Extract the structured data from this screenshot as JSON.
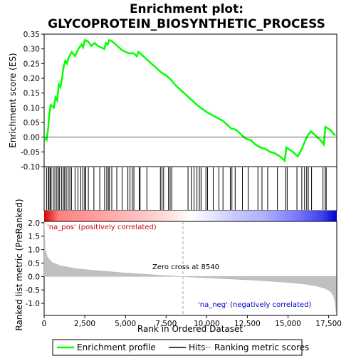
{
  "chart_data": {
    "type": "line",
    "title_line1": "Enrichment plot:",
    "title_line2": "GLYCOPROTEIN_BIOSYNTHETIC_PROCESS",
    "es_panel": {
      "ylabel": "Enrichment score (ES)",
      "ylim": [
        -0.1,
        0.35
      ],
      "yticks": [
        "-0.10",
        "-0.05",
        "0.00",
        "0.05",
        "0.10",
        "0.15",
        "0.20",
        "0.25",
        "0.30",
        "0.35"
      ],
      "line_color": "#00ff00",
      "points": [
        [
          0,
          0
        ],
        [
          150,
          -0.01
        ],
        [
          250,
          0.03
        ],
        [
          300,
          0.07
        ],
        [
          400,
          0.11
        ],
        [
          600,
          0.1
        ],
        [
          700,
          0.135
        ],
        [
          800,
          0.125
        ],
        [
          900,
          0.18
        ],
        [
          1000,
          0.17
        ],
        [
          1100,
          0.2
        ],
        [
          1200,
          0.24
        ],
        [
          1300,
          0.26
        ],
        [
          1400,
          0.25
        ],
        [
          1500,
          0.27
        ],
        [
          1700,
          0.29
        ],
        [
          1900,
          0.275
        ],
        [
          2100,
          0.3
        ],
        [
          2300,
          0.315
        ],
        [
          2400,
          0.305
        ],
        [
          2500,
          0.33
        ],
        [
          2700,
          0.325
        ],
        [
          2900,
          0.31
        ],
        [
          3100,
          0.32
        ],
        [
          3300,
          0.31
        ],
        [
          3500,
          0.305
        ],
        [
          3700,
          0.3
        ],
        [
          3800,
          0.32
        ],
        [
          3900,
          0.315
        ],
        [
          4000,
          0.33
        ],
        [
          4200,
          0.325
        ],
        [
          4500,
          0.31
        ],
        [
          4800,
          0.295
        ],
        [
          5000,
          0.29
        ],
        [
          5200,
          0.285
        ],
        [
          5500,
          0.285
        ],
        [
          5700,
          0.275
        ],
        [
          5800,
          0.29
        ],
        [
          6000,
          0.28
        ],
        [
          6300,
          0.265
        ],
        [
          6600,
          0.25
        ],
        [
          6900,
          0.235
        ],
        [
          7200,
          0.22
        ],
        [
          7500,
          0.21
        ],
        [
          7800,
          0.195
        ],
        [
          8100,
          0.175
        ],
        [
          8500,
          0.155
        ],
        [
          9000,
          0.13
        ],
        [
          9500,
          0.105
        ],
        [
          10000,
          0.085
        ],
        [
          10500,
          0.07
        ],
        [
          11000,
          0.055
        ],
        [
          11500,
          0.03
        ],
        [
          11800,
          0.025
        ],
        [
          12100,
          0.01
        ],
        [
          12400,
          -0.005
        ],
        [
          12700,
          -0.01
        ],
        [
          13000,
          -0.025
        ],
        [
          13300,
          -0.035
        ],
        [
          13600,
          -0.04
        ],
        [
          13900,
          -0.05
        ],
        [
          14200,
          -0.055
        ],
        [
          14500,
          -0.065
        ],
        [
          14800,
          -0.08
        ],
        [
          14900,
          -0.035
        ],
        [
          15300,
          -0.05
        ],
        [
          15600,
          -0.065
        ],
        [
          15800,
          -0.045
        ],
        [
          16000,
          -0.02
        ],
        [
          16200,
          0.005
        ],
        [
          16400,
          0.02
        ],
        [
          16700,
          0.005
        ],
        [
          17000,
          -0.01
        ],
        [
          17200,
          -0.025
        ],
        [
          17300,
          0.035
        ],
        [
          17600,
          0.025
        ],
        [
          17900,
          0.005
        ]
      ],
      "hits": [
        150,
        260,
        300,
        380,
        430,
        560,
        660,
        780,
        880,
        950,
        1080,
        1180,
        1260,
        1360,
        1480,
        1580,
        1680,
        1900,
        2080,
        2250,
        2380,
        2490,
        2560,
        2720,
        3060,
        3420,
        3720,
        3850,
        3950,
        4020,
        4160,
        4470,
        4800,
        5150,
        5280,
        5420,
        5520,
        5850,
        5900,
        6320,
        7150,
        7250,
        7350,
        7650,
        7750,
        7850,
        8850,
        9050,
        9220,
        9400,
        9550,
        9650,
        9950,
        10050,
        10400,
        10750,
        11000,
        11450,
        11550,
        11750,
        12200,
        12550,
        13150,
        13400,
        13750,
        14350,
        14850,
        14950,
        15550,
        15850,
        16020,
        16150,
        16250,
        16450,
        17150,
        17280,
        17350
      ],
      "gradient": [
        [
          0,
          "#dd0000"
        ],
        [
          5,
          "#ff8080"
        ],
        [
          15,
          "#ff9898"
        ],
        [
          25,
          "#ffb0b0"
        ],
        [
          35,
          "#ffc8c8"
        ],
        [
          43,
          "#ffe0e0"
        ],
        [
          50,
          "#ffffff"
        ],
        [
          57,
          "#e8e8ff"
        ],
        [
          65,
          "#c8c8ff"
        ],
        [
          75,
          "#b0b0ff"
        ],
        [
          85,
          "#8080ff"
        ],
        [
          95,
          "#4040ee"
        ],
        [
          100,
          "#0000cc"
        ]
      ]
    },
    "metric_panel": {
      "ylabel": "Ranked list metric (PreRanked)",
      "ylim": [
        -1.45,
        2.05
      ],
      "yticks": [
        "-1.0",
        "-0.5",
        "0.0",
        "0.5",
        "1.0",
        "1.5",
        "2.0"
      ],
      "fill_color": "#c0c0c0",
      "curve": [
        [
          0,
          2.05
        ],
        [
          60,
          1.0
        ],
        [
          200,
          0.72
        ],
        [
          500,
          0.52
        ],
        [
          1000,
          0.4
        ],
        [
          2000,
          0.29
        ],
        [
          3000,
          0.23
        ],
        [
          4000,
          0.18
        ],
        [
          5000,
          0.13
        ],
        [
          6000,
          0.09
        ],
        [
          7000,
          0.05
        ],
        [
          8000,
          0.015
        ],
        [
          8540,
          0
        ],
        [
          9000,
          -0.02
        ],
        [
          10000,
          -0.05
        ],
        [
          11000,
          -0.08
        ],
        [
          12000,
          -0.11
        ],
        [
          13000,
          -0.14
        ],
        [
          14000,
          -0.18
        ],
        [
          15000,
          -0.22
        ],
        [
          16000,
          -0.28
        ],
        [
          16800,
          -0.36
        ],
        [
          17300,
          -0.45
        ],
        [
          17600,
          -0.55
        ],
        [
          17800,
          -0.72
        ],
        [
          17900,
          -0.95
        ],
        [
          17950,
          -1.3
        ]
      ],
      "zero_cross_label": "Zero cross at 8540",
      "zero_cross_x": 8540,
      "pos_label": "'na_pos' (positively correlated)",
      "neg_label": "'na_neg' (negatively correlated)",
      "pos_color": "#cc0000",
      "neg_color": "#0000cc"
    },
    "xlabel": "Rank in Ordered Dataset",
    "xlim": [
      0,
      18000
    ],
    "xticks": [
      "0",
      "2,500",
      "5,000",
      "7,500",
      "10,000",
      "12,500",
      "15,000",
      "17,500"
    ]
  },
  "legend": {
    "items": [
      {
        "label": "Enrichment profile",
        "color": "#00ff00"
      },
      {
        "label": "Hits",
        "color": "#000000"
      },
      {
        "label": "Ranking metric scores",
        "color": "#c0c0c0"
      }
    ]
  }
}
